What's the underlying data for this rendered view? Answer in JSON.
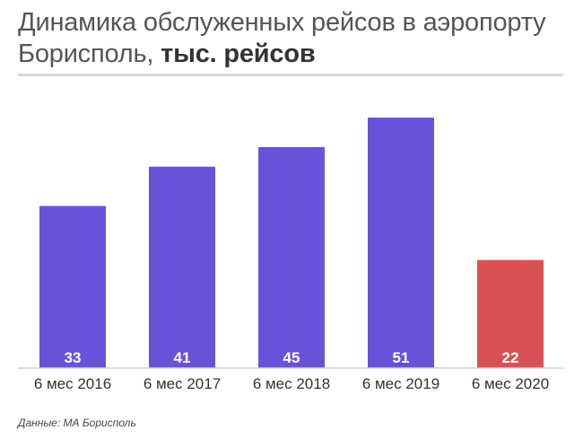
{
  "title": {
    "main": "Динамика обслуженных рейсов в аэропорту Борисполь,",
    "unit": "тыс. рейсов"
  },
  "source": "Данные: МА Борисполь",
  "colors": {
    "bar_default": "#6a52d8",
    "bar_highlight": "#d95055",
    "axis": "#cfcfcf",
    "rule": "#d9d9d9"
  },
  "chart_data": {
    "type": "bar",
    "categories": [
      "6 мес 2016",
      "6 мес 2017",
      "6 мес 2018",
      "6 мес 2019",
      "6 мес 2020"
    ],
    "values": [
      33,
      41,
      45,
      51,
      22
    ],
    "data_labels": [
      "33",
      "41",
      "45",
      "51",
      "22"
    ],
    "highlight_index": 4,
    "ylim": [
      0,
      51
    ],
    "grid": false,
    "legend": "none",
    "xlabel": "",
    "ylabel": ""
  }
}
